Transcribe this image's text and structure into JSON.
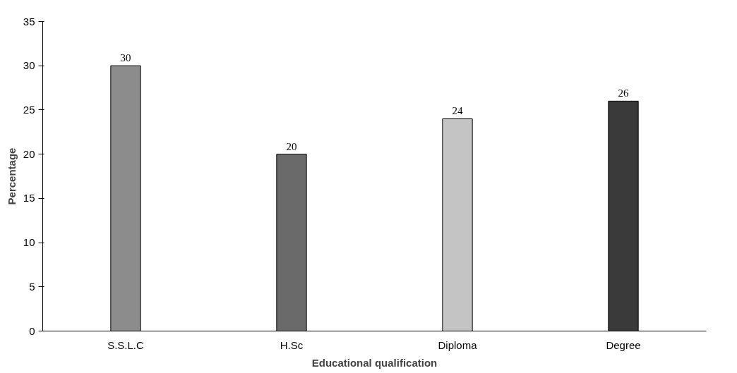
{
  "chart_data": {
    "type": "bar",
    "xlabel": "Educational qualification",
    "ylabel": "Percentage",
    "categories": [
      "S.S.L.C",
      "H.Sc",
      "Diploma",
      "Degree"
    ],
    "values": [
      30,
      20,
      24,
      26
    ],
    "colors": [
      "#8c8c8c",
      "#6a6a6a",
      "#c4c4c4",
      "#3a3a3a"
    ],
    "ylim": [
      0,
      35
    ],
    "yticks": [
      0,
      5,
      10,
      15,
      20,
      25,
      30,
      35
    ],
    "data_labels": true
  }
}
